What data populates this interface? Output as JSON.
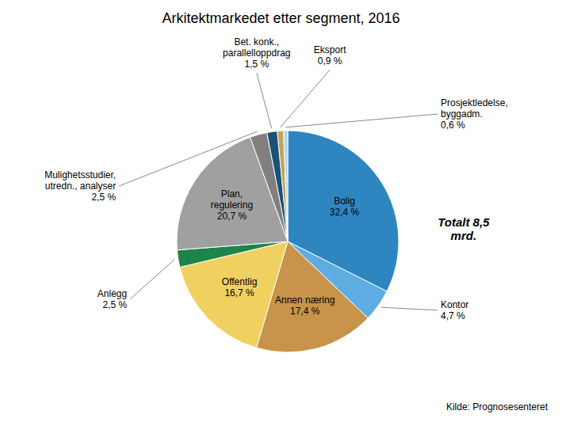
{
  "chart_data": {
    "type": "pie",
    "title": "Arkitektmarkedet etter segment, 2016",
    "categories": [
      "Bolig",
      "Kontor",
      "Annen næring",
      "Offentlig",
      "Anlegg",
      "Plan,\nregulering",
      "Mulighetsstudier,\nutredn., analyser",
      "Bet. konk.,\nparallelloppdrag",
      "Eksport",
      "Prosjektledelse,\nbyggadm."
    ],
    "values": [
      32.4,
      4.7,
      17.4,
      16.7,
      2.5,
      20.7,
      2.5,
      1.5,
      0.9,
      0.6
    ],
    "value_labels": [
      "32,4 %",
      "4,7 %",
      "17,4 %",
      "16,7 %",
      "2,5 %",
      "20,7 %",
      "2,5 %",
      "1,5 %",
      "0,9 %",
      "0,6 %"
    ],
    "data_labels": true,
    "colors": [
      "#2E86C1",
      "#5DADE2",
      "#C8934A",
      "#F0D060",
      "#1E8449",
      "#A0A0A0",
      "#808080",
      "#1A5276",
      "#C4A35A",
      "#AED6F1"
    ],
    "annotation": "Totalt 8,5\nmrd.",
    "source": "Kilde: Prognosesenteret"
  }
}
